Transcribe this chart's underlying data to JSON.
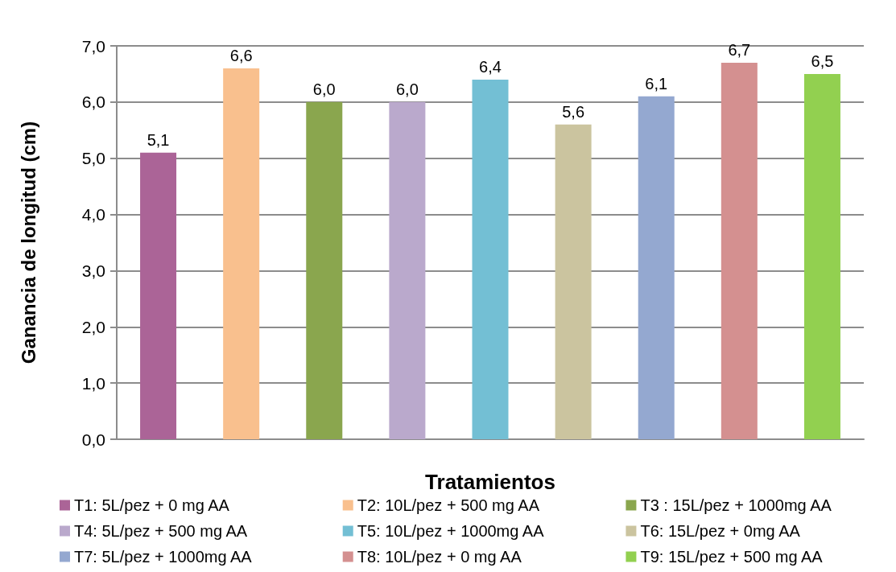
{
  "chart_data": {
    "type": "bar",
    "xlabel": "Tratamientos",
    "ylabel": "Ganancia de longitud (cm)",
    "categories": [
      null,
      null,
      null,
      null,
      null,
      null,
      null,
      null,
      null
    ],
    "series": [
      {
        "name": "T1: 5L/pez + 0 mg AA",
        "color": "#ab6497",
        "values": [
          5.1,
          null,
          null,
          null,
          null,
          null,
          null,
          null,
          null
        ],
        "value_labels": [
          "5,1",
          null,
          null,
          null,
          null,
          null,
          null,
          null,
          null
        ]
      },
      {
        "name": "T2: 10L/pez + 500 mg AA",
        "color": "#f9c08e",
        "values": [
          null,
          6.6,
          null,
          null,
          null,
          null,
          null,
          null,
          null
        ],
        "value_labels": [
          null,
          "6,6",
          null,
          null,
          null,
          null,
          null,
          null,
          null
        ]
      },
      {
        "name": "T3 : 15L/pez + 1000mg AA",
        "color": "#8aa64e",
        "values": [
          null,
          null,
          6.0,
          null,
          null,
          null,
          null,
          null,
          null
        ],
        "value_labels": [
          null,
          null,
          "6,0",
          null,
          null,
          null,
          null,
          null,
          null
        ]
      },
      {
        "name": "T4: 5L/pez + 500 mg AA",
        "color": "#baa9cc",
        "values": [
          null,
          null,
          null,
          6.0,
          null,
          null,
          null,
          null,
          null
        ],
        "value_labels": [
          null,
          null,
          null,
          "6,0",
          null,
          null,
          null,
          null,
          null
        ]
      },
      {
        "name": "T5: 10L/pez + 1000mg AA",
        "color": "#73bfd4",
        "values": [
          null,
          null,
          null,
          null,
          6.4,
          null,
          null,
          null,
          null
        ],
        "value_labels": [
          null,
          null,
          null,
          null,
          "6,4",
          null,
          null,
          null,
          null
        ]
      },
      {
        "name": "T6: 15L/pez + 0mg AA",
        "color": "#cbc49f",
        "values": [
          null,
          null,
          null,
          null,
          null,
          5.6,
          null,
          null,
          null
        ],
        "value_labels": [
          null,
          null,
          null,
          null,
          null,
          "5,6",
          null,
          null,
          null
        ]
      },
      {
        "name": "T7: 5L/pez + 1000mg AA",
        "color": "#94a8d0",
        "values": [
          null,
          null,
          null,
          null,
          null,
          null,
          6.1,
          null,
          null
        ],
        "value_labels": [
          null,
          null,
          null,
          null,
          null,
          null,
          "6,1",
          null,
          null
        ]
      },
      {
        "name": "T8: 10L/pez + 0 mg AA",
        "color": "#d49090",
        "values": [
          null,
          null,
          null,
          null,
          null,
          null,
          null,
          6.7,
          null
        ],
        "value_labels": [
          null,
          null,
          null,
          null,
          null,
          null,
          null,
          "6,7",
          null
        ]
      },
      {
        "name": "T9: 15L/pez + 500 mg AA",
        "color": "#92d050",
        "values": [
          null,
          null,
          null,
          null,
          null,
          null,
          null,
          null,
          6.5
        ],
        "value_labels": [
          null,
          null,
          null,
          null,
          null,
          null,
          null,
          null,
          "6,5"
        ]
      }
    ],
    "ylim": [
      0,
      7
    ],
    "yticks": [
      {
        "value": 0,
        "label": "0,0"
      },
      {
        "value": 1,
        "label": "1,0"
      },
      {
        "value": 2,
        "label": "2,0"
      },
      {
        "value": 3,
        "label": "3,0"
      },
      {
        "value": 4,
        "label": "4,0"
      },
      {
        "value": 5,
        "label": "5,0"
      },
      {
        "value": 6,
        "label": "6,0"
      },
      {
        "value": 7,
        "label": "7,0"
      }
    ],
    "grid": "y",
    "legend": "bottom"
  }
}
